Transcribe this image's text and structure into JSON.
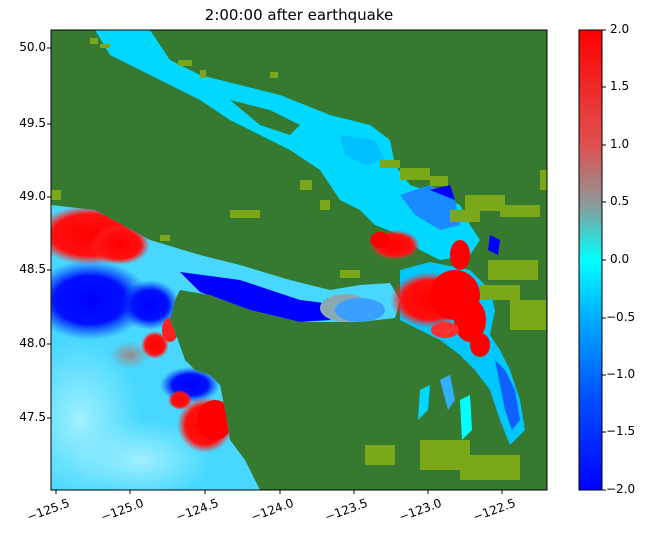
{
  "title": "2:00:00 after earthquake",
  "y_ticks": [
    "50.0",
    "49.5",
    "49.0",
    "48.5",
    "48.0",
    "47.5"
  ],
  "x_ticks": [
    "−125.5",
    "−125.0",
    "−124.5",
    "−124.0",
    "−123.5",
    "−123.0",
    "−122.5"
  ],
  "colorbar_ticks": [
    "2.0",
    "1.5",
    "1.0",
    "0.5",
    "0.0",
    "−0.5",
    "−1.0",
    "−1.5",
    "−2.0"
  ],
  "colors": {
    "land": "#357a30",
    "land_edge": "#7aa81a",
    "water_zero": "#00e5ff",
    "water_neg": "#0000ff",
    "water_pos": "#ff0000",
    "cb_top": "#ff0000",
    "cb_mid_high": "#8c8c8c",
    "cb_mid": "#00ffff",
    "cb_bottom": "#0000ff"
  },
  "map_extent": {
    "lon": [
      -125.6,
      -122.2
    ],
    "lat": [
      47.0,
      50.1
    ]
  }
}
